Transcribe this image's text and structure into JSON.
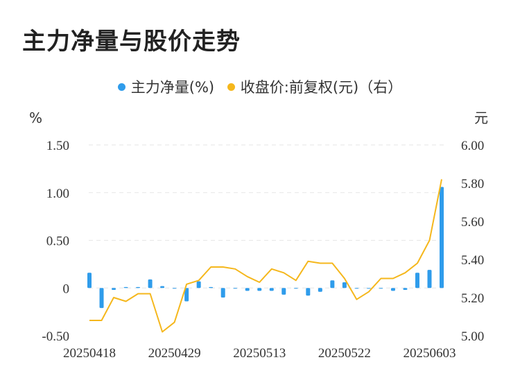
{
  "title": "主力净量与股价走势",
  "chart_data": {
    "type": "bar+line",
    "title": "主力净量与股价走势",
    "legend": [
      {
        "label": "主力净量(%)",
        "color": "#2f9ceb"
      },
      {
        "label": "收盘价:前复权(元)（右）",
        "color": "#f5b71c"
      }
    ],
    "y_left_unit": "%",
    "y_right_unit": "元",
    "y_left_ticks": [
      "1.50",
      "1.00",
      "0.50",
      "0",
      "-0.50"
    ],
    "y_right_ticks": [
      "6.00",
      "5.80",
      "5.60",
      "5.40",
      "5.20",
      "5.00"
    ],
    "ylim_left": [
      -0.5,
      1.5
    ],
    "ylim_right": [
      5.0,
      6.0
    ],
    "x_tick_labels": [
      "20250418",
      "20250429",
      "20250513",
      "20250522",
      "20250603"
    ],
    "x_tick_indices": [
      0,
      7,
      14,
      21,
      28
    ],
    "bars": [
      0.16,
      -0.21,
      -0.02,
      0.01,
      0.01,
      0.09,
      0.02,
      0.0,
      -0.14,
      0.07,
      0.01,
      -0.1,
      0.0,
      -0.03,
      -0.03,
      -0.03,
      -0.07,
      0.0,
      -0.08,
      -0.04,
      0.08,
      0.06,
      0.0,
      0.0,
      0.0,
      -0.03,
      -0.02,
      0.16,
      0.19,
      1.06
    ],
    "close": [
      5.08,
      5.08,
      5.2,
      5.18,
      5.22,
      5.22,
      5.02,
      5.07,
      5.27,
      5.29,
      5.36,
      5.36,
      5.35,
      5.31,
      5.28,
      5.35,
      5.33,
      5.29,
      5.39,
      5.38,
      5.38,
      5.3,
      5.19,
      5.23,
      5.3,
      5.3,
      5.33,
      5.38,
      5.5,
      5.82
    ]
  }
}
